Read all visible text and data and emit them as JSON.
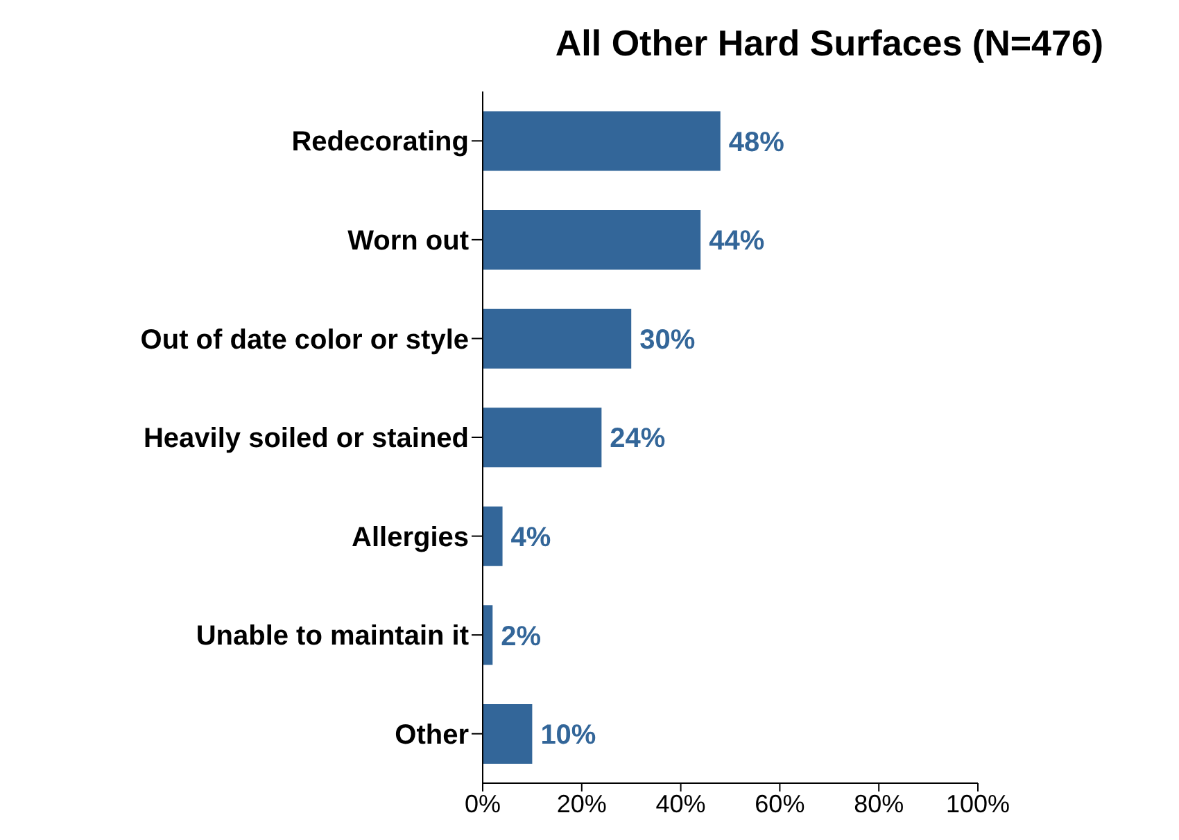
{
  "chart_data": {
    "type": "bar",
    "orientation": "horizontal",
    "title": "All Other Hard Surfaces (N=476)",
    "categories": [
      "Redecorating",
      "Worn out",
      "Out of date color or style",
      "Heavily soiled or stained",
      "Allergies",
      "Unable to maintain it",
      "Other"
    ],
    "values": [
      48,
      44,
      30,
      24,
      4,
      2,
      10
    ],
    "value_labels": [
      "48%",
      "44%",
      "30%",
      "24%",
      "4%",
      "2%",
      "10%"
    ],
    "color": "#336699",
    "xlim": [
      0,
      100
    ],
    "xticks": [
      {
        "value": 0,
        "label": "0%"
      },
      {
        "value": 20,
        "label": "20%"
      },
      {
        "value": 40,
        "label": "40%"
      },
      {
        "value": 60,
        "label": "60%"
      },
      {
        "value": 80,
        "label": "80%"
      },
      {
        "value": 100,
        "label": "100%"
      }
    ]
  }
}
